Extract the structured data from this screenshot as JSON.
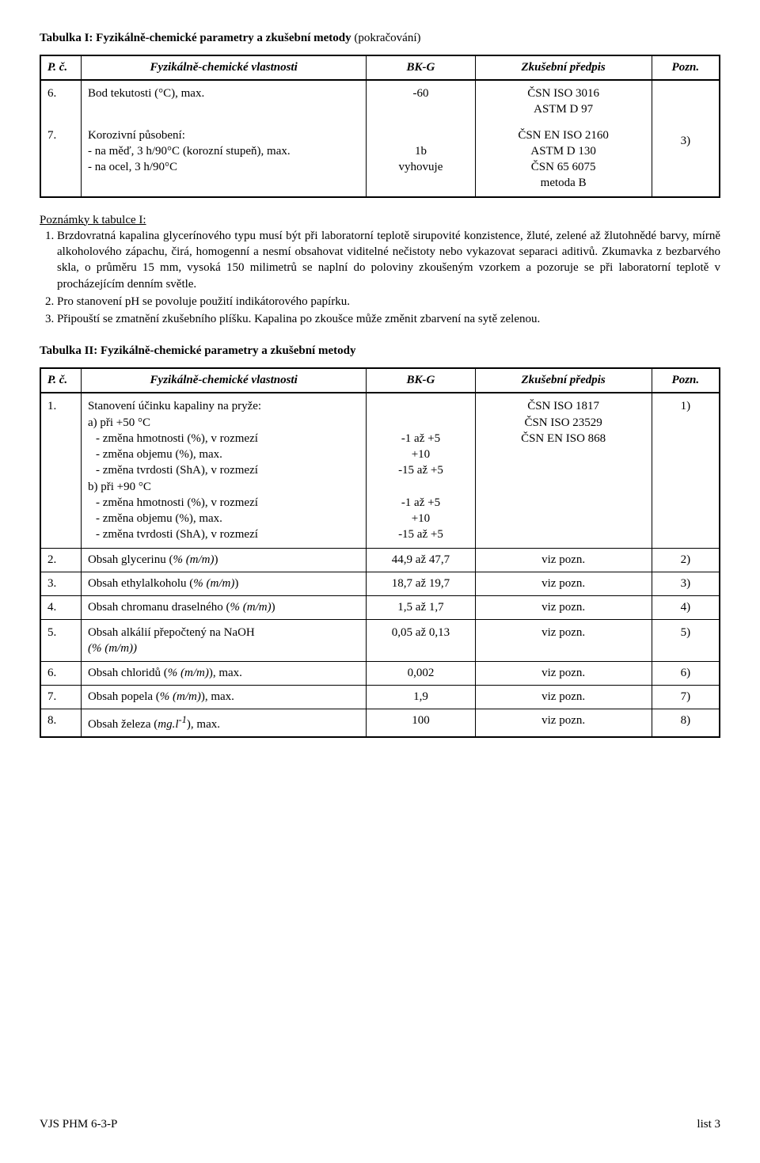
{
  "table1": {
    "title_bold": "Tabulka I: Fyzikálně-chemické parametry a zkušební metody",
    "title_regular": " (pokračování)",
    "header": {
      "col1": "P. č.",
      "col2": "Fyzikálně-chemické vlastnosti",
      "col3": "BK-G",
      "col4": "Zkušební předpis",
      "col5": "Pozn."
    },
    "row6": {
      "num": "6.",
      "prop": "Bod tekutosti (°C), max.",
      "val": "-60",
      "std1": "ČSN ISO 3016",
      "std2": "ASTM D 97"
    },
    "row7": {
      "num": "7.",
      "prop1": "Korozivní působení:",
      "prop2": "- na měď, 3 h/90°C (korozní stupeň), max.",
      "prop3": "- na ocel, 3 h/90°C",
      "val1": "1b",
      "val2": "vyhovuje",
      "std1": "ČSN EN ISO 2160",
      "std2": "ASTM D 130",
      "std3": "ČSN 65 6075",
      "std4": "metoda B",
      "note": "3)"
    }
  },
  "notes1": {
    "title": "Poznámky k tabulce I:",
    "n1": "Brzdovratná kapalina glycerínového typu musí být při laboratorní teplotě sirupovité konzistence, žluté, zelené až žlutohnědé barvy, mírně alkoholového zápachu, čirá, homogenní a nesmí obsahovat viditelné nečistoty nebo vykazovat separaci aditivů. Zkumavka z bezbarvého skla, o průměru 15 mm, vysoká 150 milimetrů se naplní do poloviny zkoušeným vzorkem a pozoruje se při laboratorní teplotě v procházejícím denním světle.",
    "n2": "Pro stanovení pH se povoluje použití indikátorového papírku.",
    "n3": "Připouští se zmatnění zkušebního plíšku. Kapalina po zkoušce může změnit zbarvení na sytě zelenou."
  },
  "table2": {
    "title": "Tabulka II:  Fyzikálně-chemické parametry a zkušební metody",
    "header": {
      "col1": "P. č.",
      "col2": "Fyzikálně-chemické vlastnosti",
      "col3": "BK-G",
      "col4": "Zkušební předpis",
      "col5": "Pozn."
    },
    "row1": {
      "num": "1.",
      "l1": "Stanovení účinku kapaliny na pryže:",
      "l2": "a) při +50 °C",
      "l3": "-   změna hmotnosti (%), v rozmezí",
      "l4": "-   změna objemu (%), max.",
      "l5": "-   změna tvrdosti (ShA), v rozmezí",
      "l6": "b) při +90 °C",
      "l7": "-   změna hmotnosti (%), v rozmezí",
      "l8": "-   změna objemu (%), max.",
      "l9": "-   změna tvrdosti (ShA), v rozmezí",
      "v3": "-1 až +5",
      "v4": "+10",
      "v5": "-15 až +5",
      "v7": "-1 až +5",
      "v8": "+10",
      "v9": "-15 až +5",
      "std1": "ČSN ISO 1817",
      "std2": "ČSN ISO 23529",
      "std3": "ČSN EN ISO 868",
      "note": "1)"
    },
    "row2": {
      "num": "2.",
      "prop": "Obsah glycerinu (% (m/m))",
      "val": "44,9 až 47,7",
      "std": "viz pozn.",
      "note": "2)"
    },
    "row3": {
      "num": "3.",
      "prop": "Obsah ethylalkoholu (% (m/m))",
      "val": "18,7 až 19,7",
      "std": "viz pozn.",
      "note": "3)"
    },
    "row4": {
      "num": "4.",
      "prop": "Obsah chromanu draselného (% (m/m))",
      "val": "1,5 až 1,7",
      "std": "viz  pozn.",
      "note": "4)"
    },
    "row5": {
      "num": "5.",
      "prop1": "Obsah alkálií přepočtený na NaOH",
      "prop2": "(% (m/m))",
      "val": "0,05 až 0,13",
      "std": "viz  pozn.",
      "note": "5)"
    },
    "row6": {
      "num": "6.",
      "prop": "Obsah chloridů (% (m/m)), max.",
      "val": "0,002",
      "std": "viz  pozn.",
      "note": "6)"
    },
    "row7": {
      "num": "7.",
      "prop": "Obsah popela (% (m/m)), max.",
      "val": "1,9",
      "std": "viz  pozn.",
      "note": "7)"
    },
    "row8": {
      "num": "8.",
      "prop_pre": "Obsah železa (",
      "prop_unit": "mg.l",
      "prop_sup": "-1",
      "prop_post": "), max.",
      "val": "100",
      "std": "viz  pozn.",
      "note": "8)"
    }
  },
  "footer": {
    "left": "VJS PHM 6-3-P",
    "right": "list 3"
  }
}
